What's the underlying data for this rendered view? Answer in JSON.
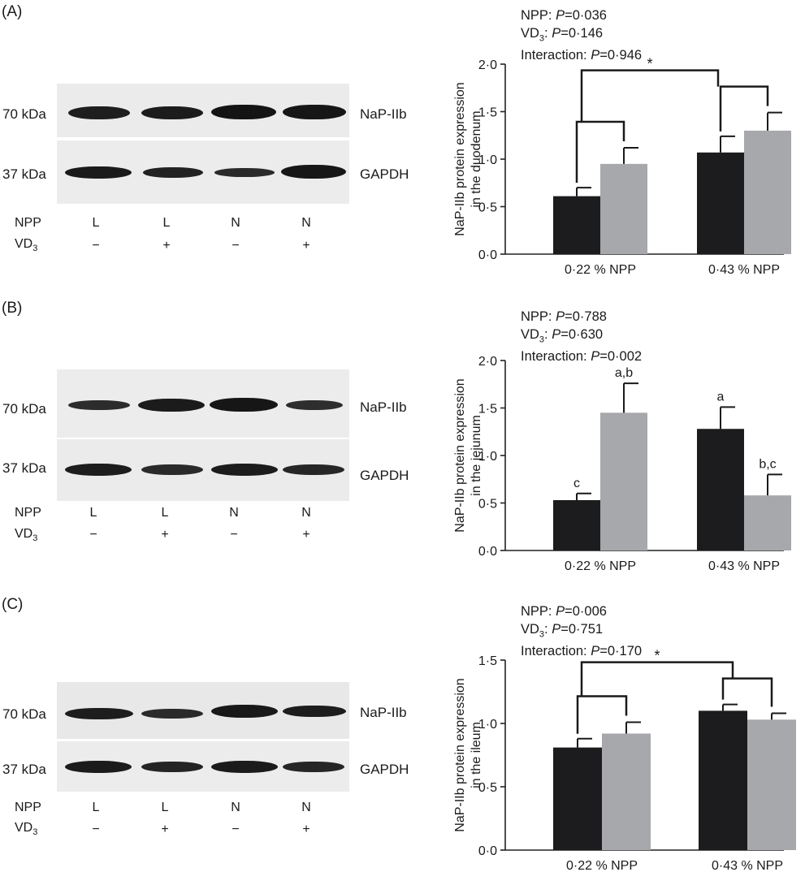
{
  "panels": [
    {
      "label": "(A)",
      "blot": {
        "marker_top": "70 kDa",
        "marker_bottom": "37 kDa",
        "protein_top": "NaP-IIb",
        "protein_bottom": "GAPDH",
        "row1_label": "NPP",
        "row2_label": "VD",
        "row2_sub": "3",
        "npp": [
          "L",
          "L",
          "N",
          "N"
        ],
        "vd3": [
          "−",
          "+",
          "−",
          "+"
        ]
      },
      "stats": {
        "npp_prefix": "NPP: ",
        "npp_p": "P",
        "npp_val": "=0·036",
        "vd_prefix": "VD",
        "vd_sub": "3",
        "vd_colon": ": ",
        "vd_p": "P",
        "vd_val": "=0·146",
        "int_prefix": "Interaction: ",
        "int_p": "P",
        "int_val": "=0·946"
      }
    },
    {
      "label": "(B)",
      "blot": {
        "marker_top": "70 kDa",
        "marker_bottom": "37 kDa",
        "protein_top": "NaP-IIb",
        "protein_bottom": "GAPDH",
        "row1_label": "NPP",
        "row2_label": "VD",
        "row2_sub": "3",
        "npp": [
          "L",
          "L",
          "N",
          "N"
        ],
        "vd3": [
          "−",
          "+",
          "−",
          "+"
        ]
      },
      "stats": {
        "npp_prefix": "NPP: ",
        "npp_p": "P",
        "npp_val": "=0·788",
        "vd_prefix": "VD",
        "vd_sub": "3",
        "vd_colon": ": ",
        "vd_p": "P",
        "vd_val": "=0·630",
        "int_prefix": "Interaction: ",
        "int_p": "P",
        "int_val": "=0·002"
      }
    },
    {
      "label": "(C)",
      "blot": {
        "marker_top": "70 kDa",
        "marker_bottom": "37 kDa",
        "protein_top": "NaP-IIb",
        "protein_bottom": "GAPDH",
        "row1_label": "NPP",
        "row2_label": "VD",
        "row2_sub": "3",
        "npp": [
          "L",
          "L",
          "N",
          "N"
        ],
        "vd3": [
          "−",
          "+",
          "−",
          "+"
        ]
      },
      "stats": {
        "npp_prefix": "NPP: ",
        "npp_p": "P",
        "npp_val": "=0·006",
        "vd_prefix": "VD",
        "vd_sub": "3",
        "vd_colon": ": ",
        "vd_p": "P",
        "vd_val": "=0·751",
        "int_prefix": "Interaction: ",
        "int_p": "P",
        "int_val": "=0·170"
      }
    }
  ],
  "colors": {
    "minus_vd3_bar": "#1c1c1e",
    "plus_vd3_bar": "#a6a8ab",
    "axis": "#222222"
  },
  "chart_data": [
    {
      "type": "bar",
      "ylabel": "NaP-IIb protein expression in the duodenum",
      "categories": [
        "0·22 % NPP",
        "0·43 % NPP"
      ],
      "series": [
        {
          "values": [
            0.61,
            1.07
          ],
          "errors": [
            0.09,
            0.17
          ]
        },
        {
          "values": [
            0.95,
            1.3
          ],
          "errors": [
            0.17,
            0.19
          ]
        }
      ],
      "ylim": [
        0,
        2.0
      ],
      "yticks": [
        "0·0",
        "0·5",
        "1·0",
        "1·5",
        "2·0"
      ],
      "bar_letters": [
        "",
        "",
        "",
        ""
      ],
      "significance_star": "*",
      "brackets": "within-group brackets; star comparing NPP levels"
    },
    {
      "type": "bar",
      "ylabel": "NaP-IIb protein expression in the jejunum",
      "categories": [
        "0·22 % NPP",
        "0·43 % NPP"
      ],
      "series": [
        {
          "values": [
            0.53,
            1.28
          ],
          "errors": [
            0.07,
            0.23
          ]
        },
        {
          "values": [
            1.45,
            0.58
          ],
          "errors": [
            0.31,
            0.22
          ]
        }
      ],
      "ylim": [
        0,
        2.0
      ],
      "yticks": [
        "0·0",
        "0·5",
        "1·0",
        "1·5",
        "2·0"
      ],
      "bar_letters": [
        "c",
        "a,b",
        "a",
        "b,c"
      ],
      "significance_star": "",
      "brackets": ""
    },
    {
      "type": "bar",
      "ylabel": "NaP-IIb protein expression in the ileum",
      "categories": [
        "0·22 % NPP",
        "0·43 % NPP"
      ],
      "series": [
        {
          "values": [
            0.81,
            1.1
          ],
          "errors": [
            0.07,
            0.05
          ]
        },
        {
          "values": [
            0.92,
            1.03
          ],
          "errors": [
            0.09,
            0.05
          ]
        }
      ],
      "ylim": [
        0,
        1.5
      ],
      "yticks": [
        "0·0",
        "0·5",
        "1·0",
        "1·5"
      ],
      "bar_letters": [
        "",
        "",
        "",
        ""
      ],
      "significance_star": "*",
      "brackets": "within-group brackets; star comparing NPP levels"
    }
  ]
}
